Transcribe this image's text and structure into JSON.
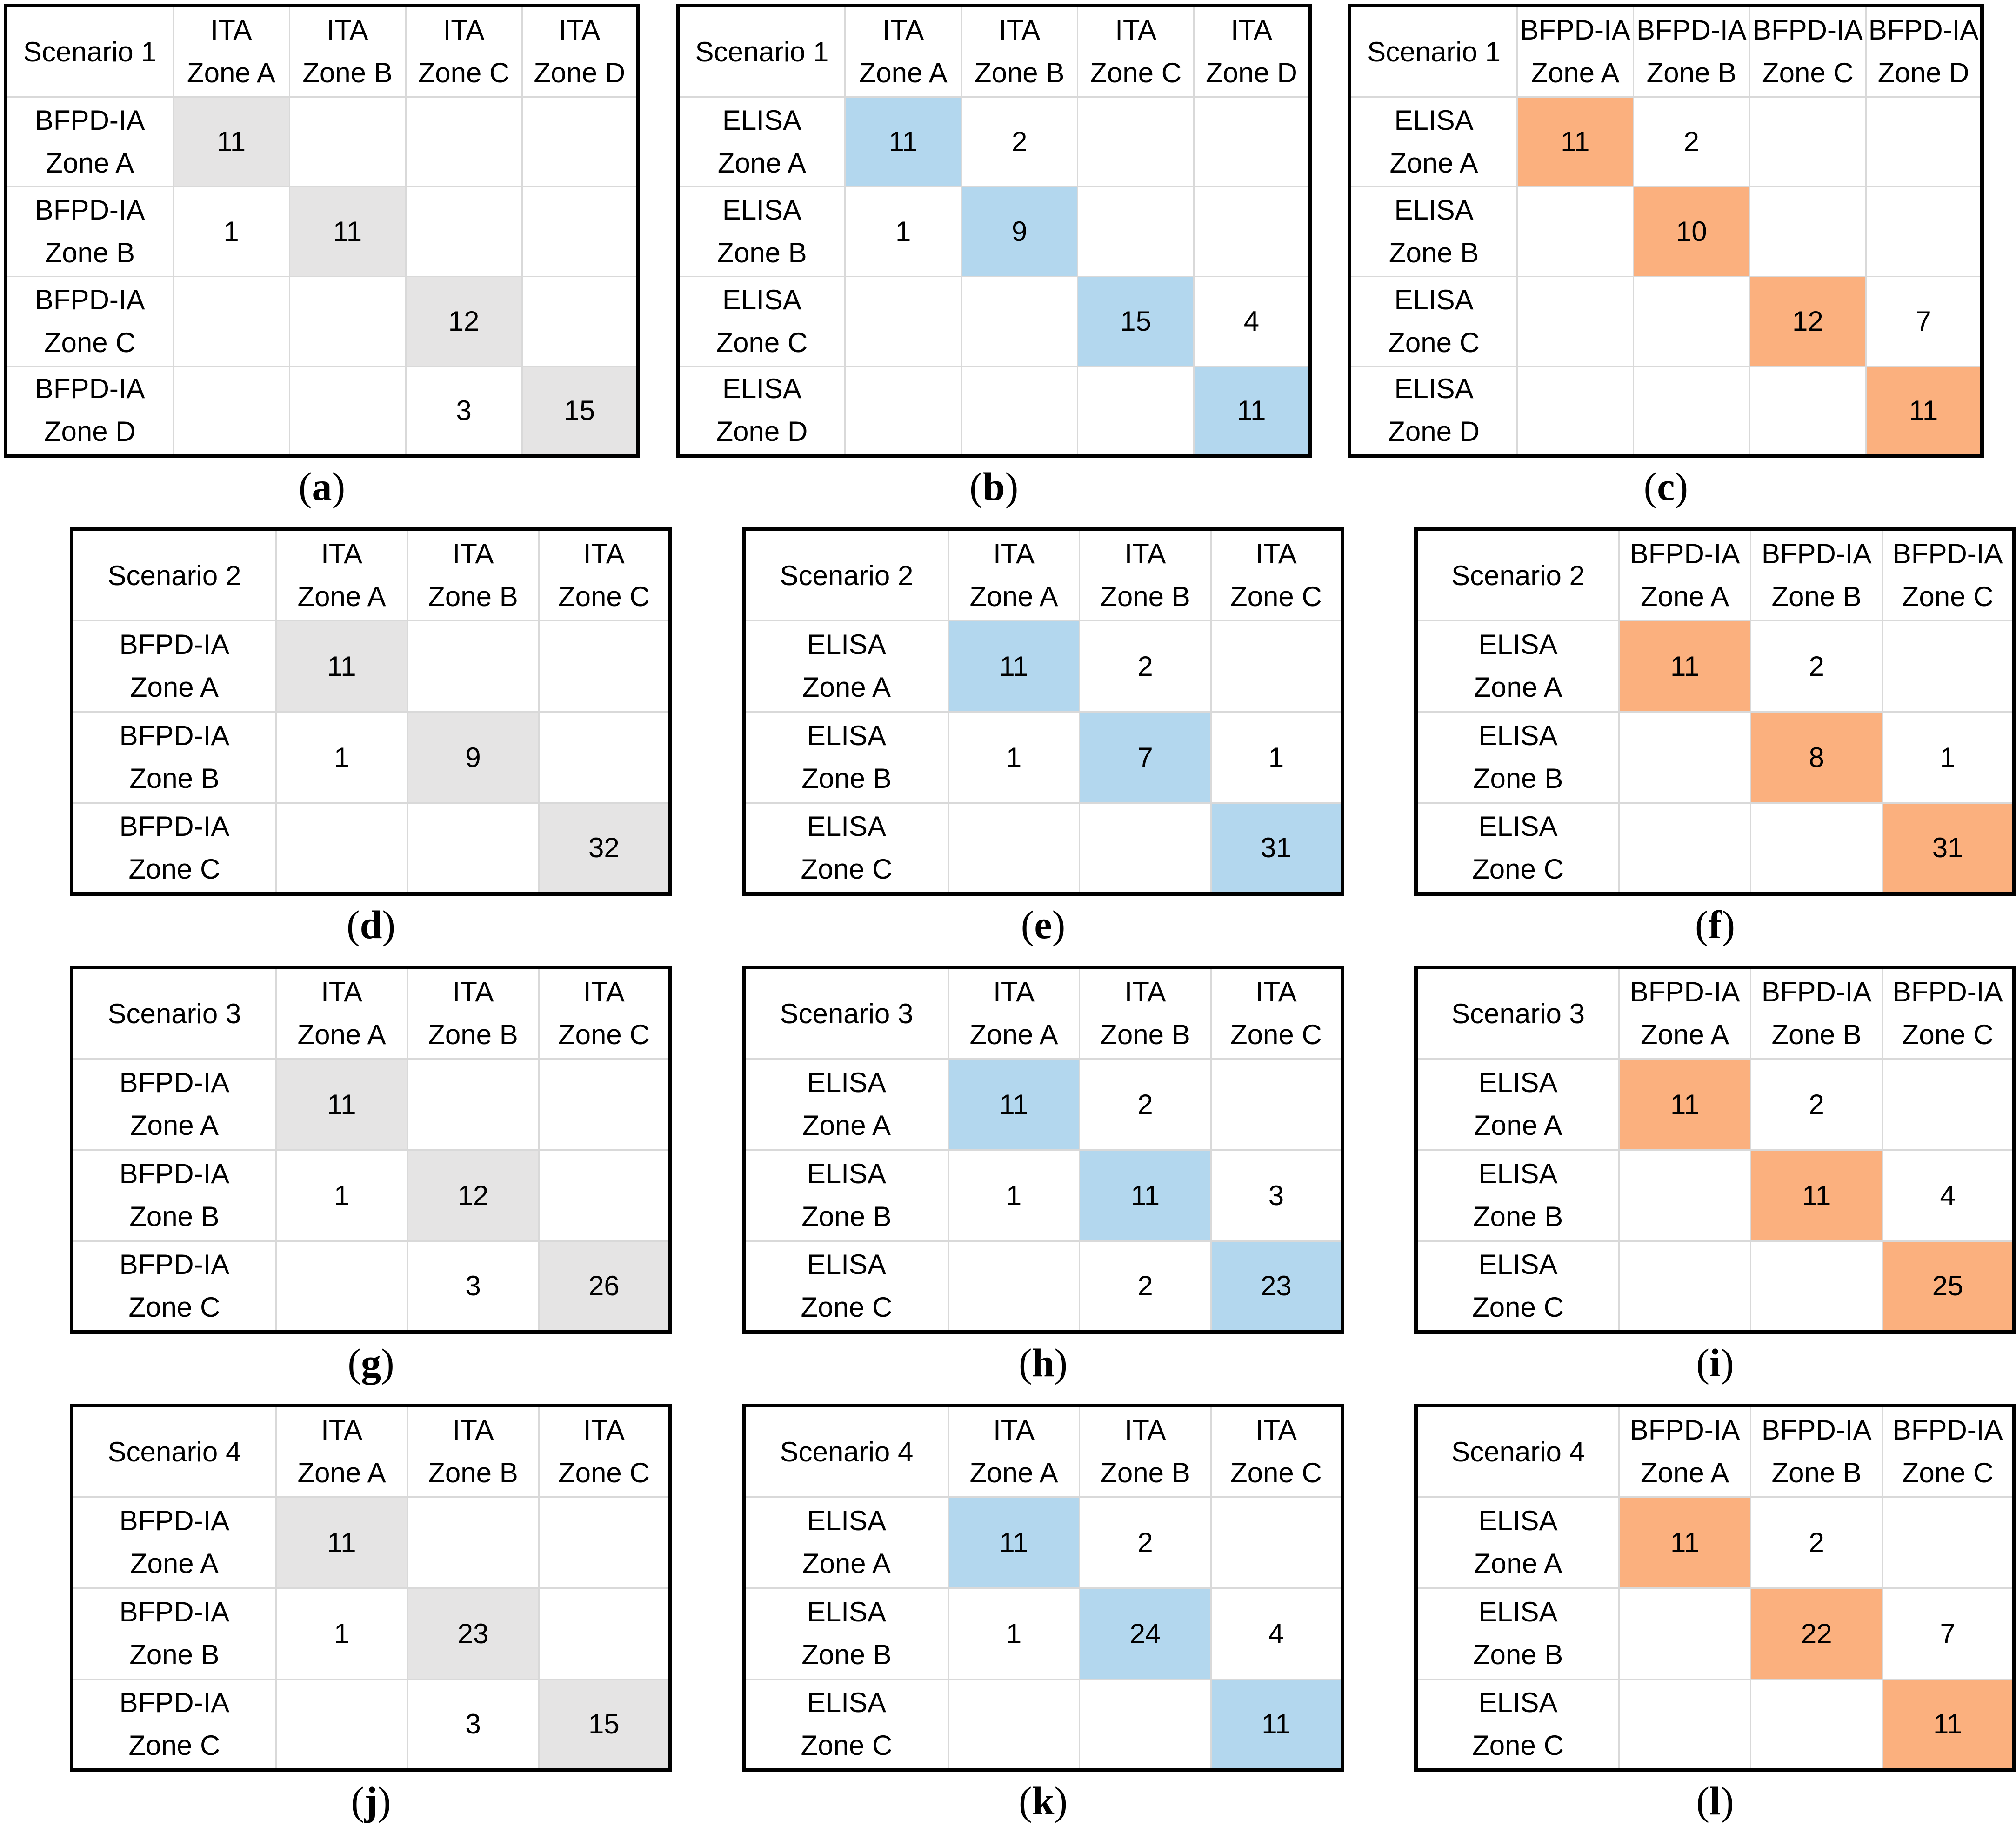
{
  "figure": {
    "background": "#FFFFFF"
  },
  "colors": {
    "diag_gray": "#E5E4E4",
    "diag_blue": "#B3D7EE",
    "diag_orange": "#FBB07E",
    "grid_line": "#D9D9D9",
    "outer_border": "#000000",
    "text": "#000000"
  },
  "caption_format": {
    "open": "(",
    "close": ")"
  },
  "tables": [
    {
      "letter": "a",
      "scenario": "Scenario 1",
      "col_method": "ITA",
      "row_method": "BFPD-IA",
      "zones": [
        "Zone A",
        "Zone B",
        "Zone C",
        "Zone D"
      ],
      "diag_color": "diag_gray",
      "cells": [
        [
          "11",
          "",
          "",
          ""
        ],
        [
          "1",
          "11",
          "",
          ""
        ],
        [
          "",
          "",
          "12",
          ""
        ],
        [
          "",
          "",
          "3",
          "15"
        ]
      ]
    },
    {
      "letter": "b",
      "scenario": "Scenario 1",
      "col_method": "ITA",
      "row_method": "ELISA",
      "zones": [
        "Zone A",
        "Zone B",
        "Zone C",
        "Zone D"
      ],
      "diag_color": "diag_blue",
      "cells": [
        [
          "11",
          "2",
          "",
          ""
        ],
        [
          "1",
          "9",
          "",
          ""
        ],
        [
          "",
          "",
          "15",
          "4"
        ],
        [
          "",
          "",
          "",
          "11"
        ]
      ]
    },
    {
      "letter": "c",
      "scenario": "Scenario 1",
      "col_method": "BFPD-IA",
      "row_method": "ELISA",
      "zones": [
        "Zone A",
        "Zone B",
        "Zone C",
        "Zone D"
      ],
      "diag_color": "diag_orange",
      "cells": [
        [
          "11",
          "2",
          "",
          ""
        ],
        [
          "",
          "10",
          "",
          ""
        ],
        [
          "",
          "",
          "12",
          "7"
        ],
        [
          "",
          "",
          "",
          "11"
        ]
      ]
    },
    {
      "letter": "d",
      "scenario": "Scenario 2",
      "col_method": "ITA",
      "row_method": "BFPD-IA",
      "zones": [
        "Zone A",
        "Zone B",
        "Zone C"
      ],
      "diag_color": "diag_gray",
      "cells": [
        [
          "11",
          "",
          ""
        ],
        [
          "1",
          "9",
          ""
        ],
        [
          "",
          "",
          "32"
        ]
      ]
    },
    {
      "letter": "e",
      "scenario": "Scenario 2",
      "col_method": "ITA",
      "row_method": "ELISA",
      "zones": [
        "Zone A",
        "Zone B",
        "Zone C"
      ],
      "diag_color": "diag_blue",
      "cells": [
        [
          "11",
          "2",
          ""
        ],
        [
          "1",
          "7",
          "1"
        ],
        [
          "",
          "",
          "31"
        ]
      ]
    },
    {
      "letter": "f",
      "scenario": "Scenario 2",
      "col_method": "BFPD-IA",
      "row_method": "ELISA",
      "zones": [
        "Zone A",
        "Zone B",
        "Zone C"
      ],
      "diag_color": "diag_orange",
      "cells": [
        [
          "11",
          "2",
          ""
        ],
        [
          "",
          "8",
          "1"
        ],
        [
          "",
          "",
          "31"
        ]
      ]
    },
    {
      "letter": "g",
      "scenario": "Scenario 3",
      "col_method": "ITA",
      "row_method": "BFPD-IA",
      "zones": [
        "Zone A",
        "Zone B",
        "Zone C"
      ],
      "diag_color": "diag_gray",
      "cells": [
        [
          "11",
          "",
          ""
        ],
        [
          "1",
          "12",
          ""
        ],
        [
          "",
          "3",
          "26"
        ]
      ]
    },
    {
      "letter": "h",
      "scenario": "Scenario 3",
      "col_method": "ITA",
      "row_method": "ELISA",
      "zones": [
        "Zone A",
        "Zone B",
        "Zone C"
      ],
      "diag_color": "diag_blue",
      "cells": [
        [
          "11",
          "2",
          ""
        ],
        [
          "1",
          "11",
          "3"
        ],
        [
          "",
          "2",
          "23"
        ]
      ]
    },
    {
      "letter": "i",
      "scenario": "Scenario 3",
      "col_method": "BFPD-IA",
      "row_method": "ELISA",
      "zones": [
        "Zone A",
        "Zone B",
        "Zone C"
      ],
      "diag_color": "diag_orange",
      "cells": [
        [
          "11",
          "2",
          ""
        ],
        [
          "",
          "11",
          "4"
        ],
        [
          "",
          "",
          "25"
        ]
      ]
    },
    {
      "letter": "j",
      "scenario": "Scenario 4",
      "col_method": "ITA",
      "row_method": "BFPD-IA",
      "zones": [
        "Zone A",
        "Zone B",
        "Zone C"
      ],
      "diag_color": "diag_gray",
      "cells": [
        [
          "11",
          "",
          ""
        ],
        [
          "1",
          "23",
          ""
        ],
        [
          "",
          "3",
          "15"
        ]
      ]
    },
    {
      "letter": "k",
      "scenario": "Scenario 4",
      "col_method": "ITA",
      "row_method": "ELISA",
      "zones": [
        "Zone A",
        "Zone B",
        "Zone C"
      ],
      "diag_color": "diag_blue",
      "cells": [
        [
          "11",
          "2",
          ""
        ],
        [
          "1",
          "24",
          "4"
        ],
        [
          "",
          "",
          "11"
        ]
      ]
    },
    {
      "letter": "l",
      "scenario": "Scenario 4",
      "col_method": "BFPD-IA",
      "row_method": "ELISA",
      "zones": [
        "Zone A",
        "Zone B",
        "Zone C"
      ],
      "diag_color": "diag_orange",
      "cells": [
        [
          "11",
          "2",
          ""
        ],
        [
          "",
          "22",
          "7"
        ],
        [
          "",
          "",
          "11"
        ]
      ]
    }
  ]
}
